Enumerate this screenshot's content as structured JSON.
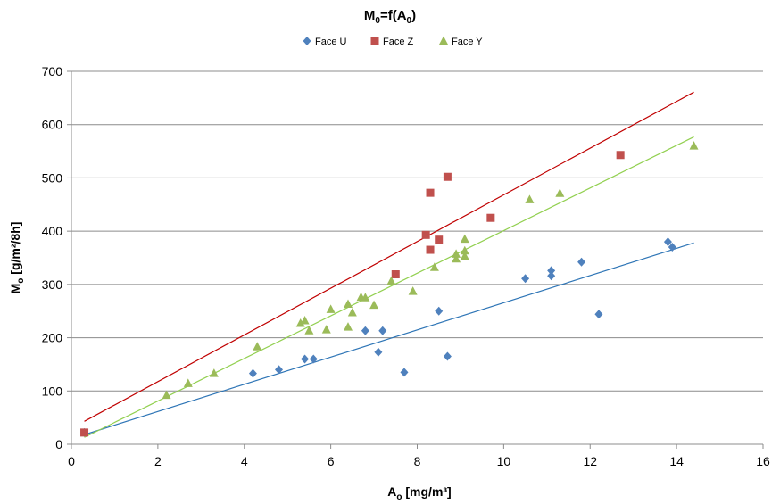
{
  "chart_data": {
    "type": "scatter",
    "title": {
      "base": "M",
      "sub1": "0",
      "mid": "=f(A",
      "sub2": "0",
      "end": ")"
    },
    "xlabel": {
      "base": "A",
      "sub": "o",
      "rest": " [mg/m³]"
    },
    "ylabel": {
      "base": "M",
      "sub": "o",
      "rest": " [g/m²/8h]"
    },
    "xlim": [
      0,
      16
    ],
    "ylim": [
      0,
      700
    ],
    "xticks": [
      0,
      2,
      4,
      6,
      8,
      10,
      12,
      14,
      16
    ],
    "yticks": [
      0,
      100,
      200,
      300,
      400,
      500,
      600,
      700
    ],
    "grid": "horizontal",
    "legend_position": "top-center",
    "series": [
      {
        "name": "Face U",
        "marker": "diamond",
        "color": "#4F81BD",
        "points": [
          [
            0.3,
            22
          ],
          [
            4.2,
            133
          ],
          [
            4.8,
            140
          ],
          [
            5.4,
            160
          ],
          [
            5.6,
            160
          ],
          [
            6.8,
            213
          ],
          [
            7.1,
            173
          ],
          [
            7.2,
            213
          ],
          [
            7.7,
            135
          ],
          [
            8.5,
            250
          ],
          [
            8.7,
            165
          ],
          [
            10.5,
            311
          ],
          [
            11.1,
            316
          ],
          [
            11.1,
            326
          ],
          [
            11.8,
            342
          ],
          [
            12.2,
            244
          ],
          [
            13.8,
            380
          ],
          [
            13.9,
            370
          ]
        ],
        "trendline": {
          "color": "#2E75B6",
          "x": [
            0.3,
            14.4
          ],
          "y": [
            18,
            378
          ]
        }
      },
      {
        "name": "Face Z",
        "marker": "square",
        "color": "#C0504D",
        "points": [
          [
            0.3,
            22
          ],
          [
            7.5,
            319
          ],
          [
            8.2,
            393
          ],
          [
            8.3,
            365
          ],
          [
            8.3,
            472
          ],
          [
            8.5,
            384
          ],
          [
            8.7,
            502
          ],
          [
            9.7,
            425
          ],
          [
            12.7,
            543
          ]
        ],
        "trendline": {
          "color": "#C00000",
          "x": [
            0.3,
            14.4
          ],
          "y": [
            43,
            661
          ]
        }
      },
      {
        "name": "Face Y",
        "marker": "triangle",
        "color": "#9BBB59",
        "points": [
          [
            2.2,
            92
          ],
          [
            2.7,
            114
          ],
          [
            3.3,
            133
          ],
          [
            4.3,
            183
          ],
          [
            5.3,
            227
          ],
          [
            5.4,
            232
          ],
          [
            5.5,
            213
          ],
          [
            5.9,
            215
          ],
          [
            6.0,
            253
          ],
          [
            6.4,
            263
          ],
          [
            6.4,
            220
          ],
          [
            6.5,
            247
          ],
          [
            6.7,
            276
          ],
          [
            6.8,
            275
          ],
          [
            7.0,
            261
          ],
          [
            7.4,
            306
          ],
          [
            7.9,
            287
          ],
          [
            8.4,
            332
          ],
          [
            8.9,
            348
          ],
          [
            8.9,
            357
          ],
          [
            9.1,
            353
          ],
          [
            9.1,
            363
          ],
          [
            9.1,
            385
          ],
          [
            10.6,
            459
          ],
          [
            11.3,
            471
          ],
          [
            14.4,
            560
          ]
        ],
        "trendline": {
          "color": "#92D050",
          "x": [
            0.3,
            14.4
          ],
          "y": [
            13,
            577
          ]
        }
      }
    ]
  }
}
